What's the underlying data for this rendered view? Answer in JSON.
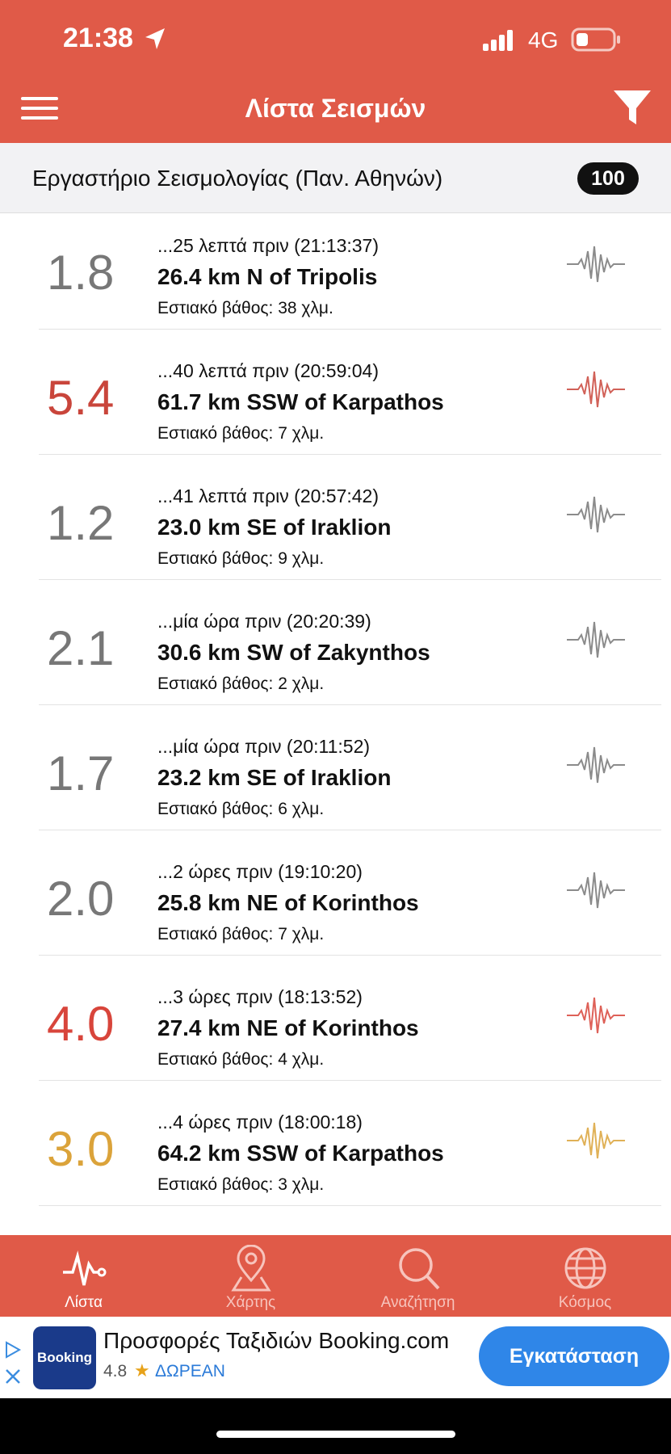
{
  "status_bar": {
    "time": "21:38",
    "network": "4G"
  },
  "header": {
    "title": "Λίστα Σεισμών"
  },
  "source": {
    "name": "Εργαστήριο Σεισμολογίας (Παν. Αθηνών)",
    "count": "100"
  },
  "earthquakes": [
    {
      "magnitude": "1.8",
      "color": "#777777",
      "time": "...25 λεπτά πριν (21:13:37)",
      "location": "26.4 km N of Tripolis",
      "depth": "Εστιακό βάθος: 38 χλμ."
    },
    {
      "magnitude": "5.4",
      "color": "#c9453b",
      "time": "...40 λεπτά πριν (20:59:04)",
      "location": "61.7 km SSW of Karpathos",
      "depth": "Εστιακό βάθος: 7 χλμ."
    },
    {
      "magnitude": "1.2",
      "color": "#777777",
      "time": "...41 λεπτά πριν (20:57:42)",
      "location": "23.0 km SE of Iraklion",
      "depth": "Εστιακό βάθος: 9 χλμ."
    },
    {
      "magnitude": "2.1",
      "color": "#777777",
      "time": "...μία ώρα πριν (20:20:39)",
      "location": "30.6 km SW of Zakynthos",
      "depth": "Εστιακό βάθος: 2 χλμ."
    },
    {
      "magnitude": "1.7",
      "color": "#777777",
      "time": "...μία ώρα πριν (20:11:52)",
      "location": "23.2 km SE of Iraklion",
      "depth": "Εστιακό βάθος: 6 χλμ."
    },
    {
      "magnitude": "2.0",
      "color": "#777777",
      "time": "...2 ώρες πριν (19:10:20)",
      "location": "25.8 km NE of Korinthos",
      "depth": "Εστιακό βάθος: 7 χλμ."
    },
    {
      "magnitude": "4.0",
      "color": "#d8453b",
      "time": "...3 ώρες πριν (18:13:52)",
      "location": "27.4 km NE of Korinthos",
      "depth": "Εστιακό βάθος: 4 χλμ."
    },
    {
      "magnitude": "3.0",
      "color": "#dba33a",
      "time": "...4 ώρες πριν (18:00:18)",
      "location": "64.2 km SSW of Karpathos",
      "depth": "Εστιακό βάθος: 3 χλμ."
    }
  ],
  "tabs": [
    "Λίστα",
    "Χάρτης",
    "Αναζήτηση",
    "Κόσμος"
  ],
  "ad": {
    "brand": "Booking",
    "title": "Προσφορές Ταξιδιών Booking.com",
    "rating": "4.8",
    "price": "ΔΩΡΕΑΝ",
    "button": "Εγκατάσταση"
  }
}
